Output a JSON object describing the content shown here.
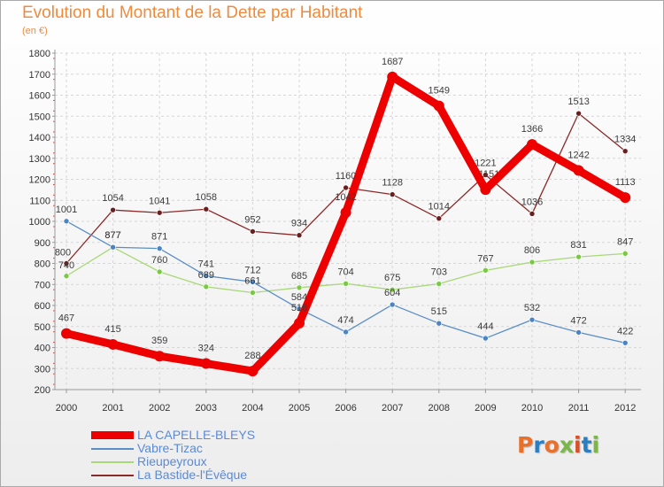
{
  "header": {
    "title": "Evolution du Montant de la Dette par Habitant",
    "subtitle": "(en €)"
  },
  "logo": {
    "text": "Proxiti",
    "colors": [
      "#e8702a",
      "#2a7fc0",
      "#e8702a",
      "#7ab648",
      "#d94f2a",
      "#2a7fc0",
      "#7ab648"
    ]
  },
  "chart_data": {
    "type": "line",
    "title": "Evolution du Montant de la Dette par Habitant",
    "ylabel": "(en €)",
    "xlabel": "",
    "x": [
      "2000",
      "2001",
      "2002",
      "2003",
      "2004",
      "2005",
      "2006",
      "2007",
      "2008",
      "2009",
      "2010",
      "2011",
      "2012"
    ],
    "ylim": [
      200,
      1800
    ],
    "yticks": [
      200,
      300,
      400,
      500,
      600,
      700,
      800,
      900,
      1000,
      1100,
      1200,
      1300,
      1400,
      1500,
      1600,
      1700,
      1800
    ],
    "grid": true,
    "legend_position": "bottom-left",
    "series": [
      {
        "name": "La Bastide-l'Évêque",
        "color": "#8b2a2a",
        "marker": "#6a1f1f",
        "emphasis": false,
        "values": [
          800,
          1054,
          1041,
          1058,
          952,
          934,
          1160,
          1128,
          1014,
          1221,
          1036,
          1513,
          1334
        ]
      },
      {
        "name": "Rieupeyroux",
        "color": "#a8d878",
        "marker": "#7ac943",
        "emphasis": false,
        "values": [
          740,
          877,
          760,
          689,
          661,
          685,
          704,
          675,
          703,
          767,
          806,
          831,
          847
        ]
      },
      {
        "name": "Vabre-Tizac",
        "color": "#5a8ec6",
        "marker": "#4a84c4",
        "emphasis": false,
        "values": [
          1001,
          877,
          871,
          741,
          712,
          584,
          474,
          604,
          515,
          444,
          532,
          472,
          422
        ]
      },
      {
        "name": "LA CAPELLE-BLEYS",
        "color": "#ee0000",
        "marker": "#ee0000",
        "emphasis": true,
        "values": [
          467,
          415,
          359,
          324,
          288,
          516,
          1042,
          1687,
          1549,
          1151,
          1366,
          1242,
          1113
        ]
      }
    ],
    "legend_order": [
      "LA CAPELLE-BLEYS",
      "Vabre-Tizac",
      "Rieupeyroux",
      "La Bastide-l'Évêque"
    ]
  }
}
